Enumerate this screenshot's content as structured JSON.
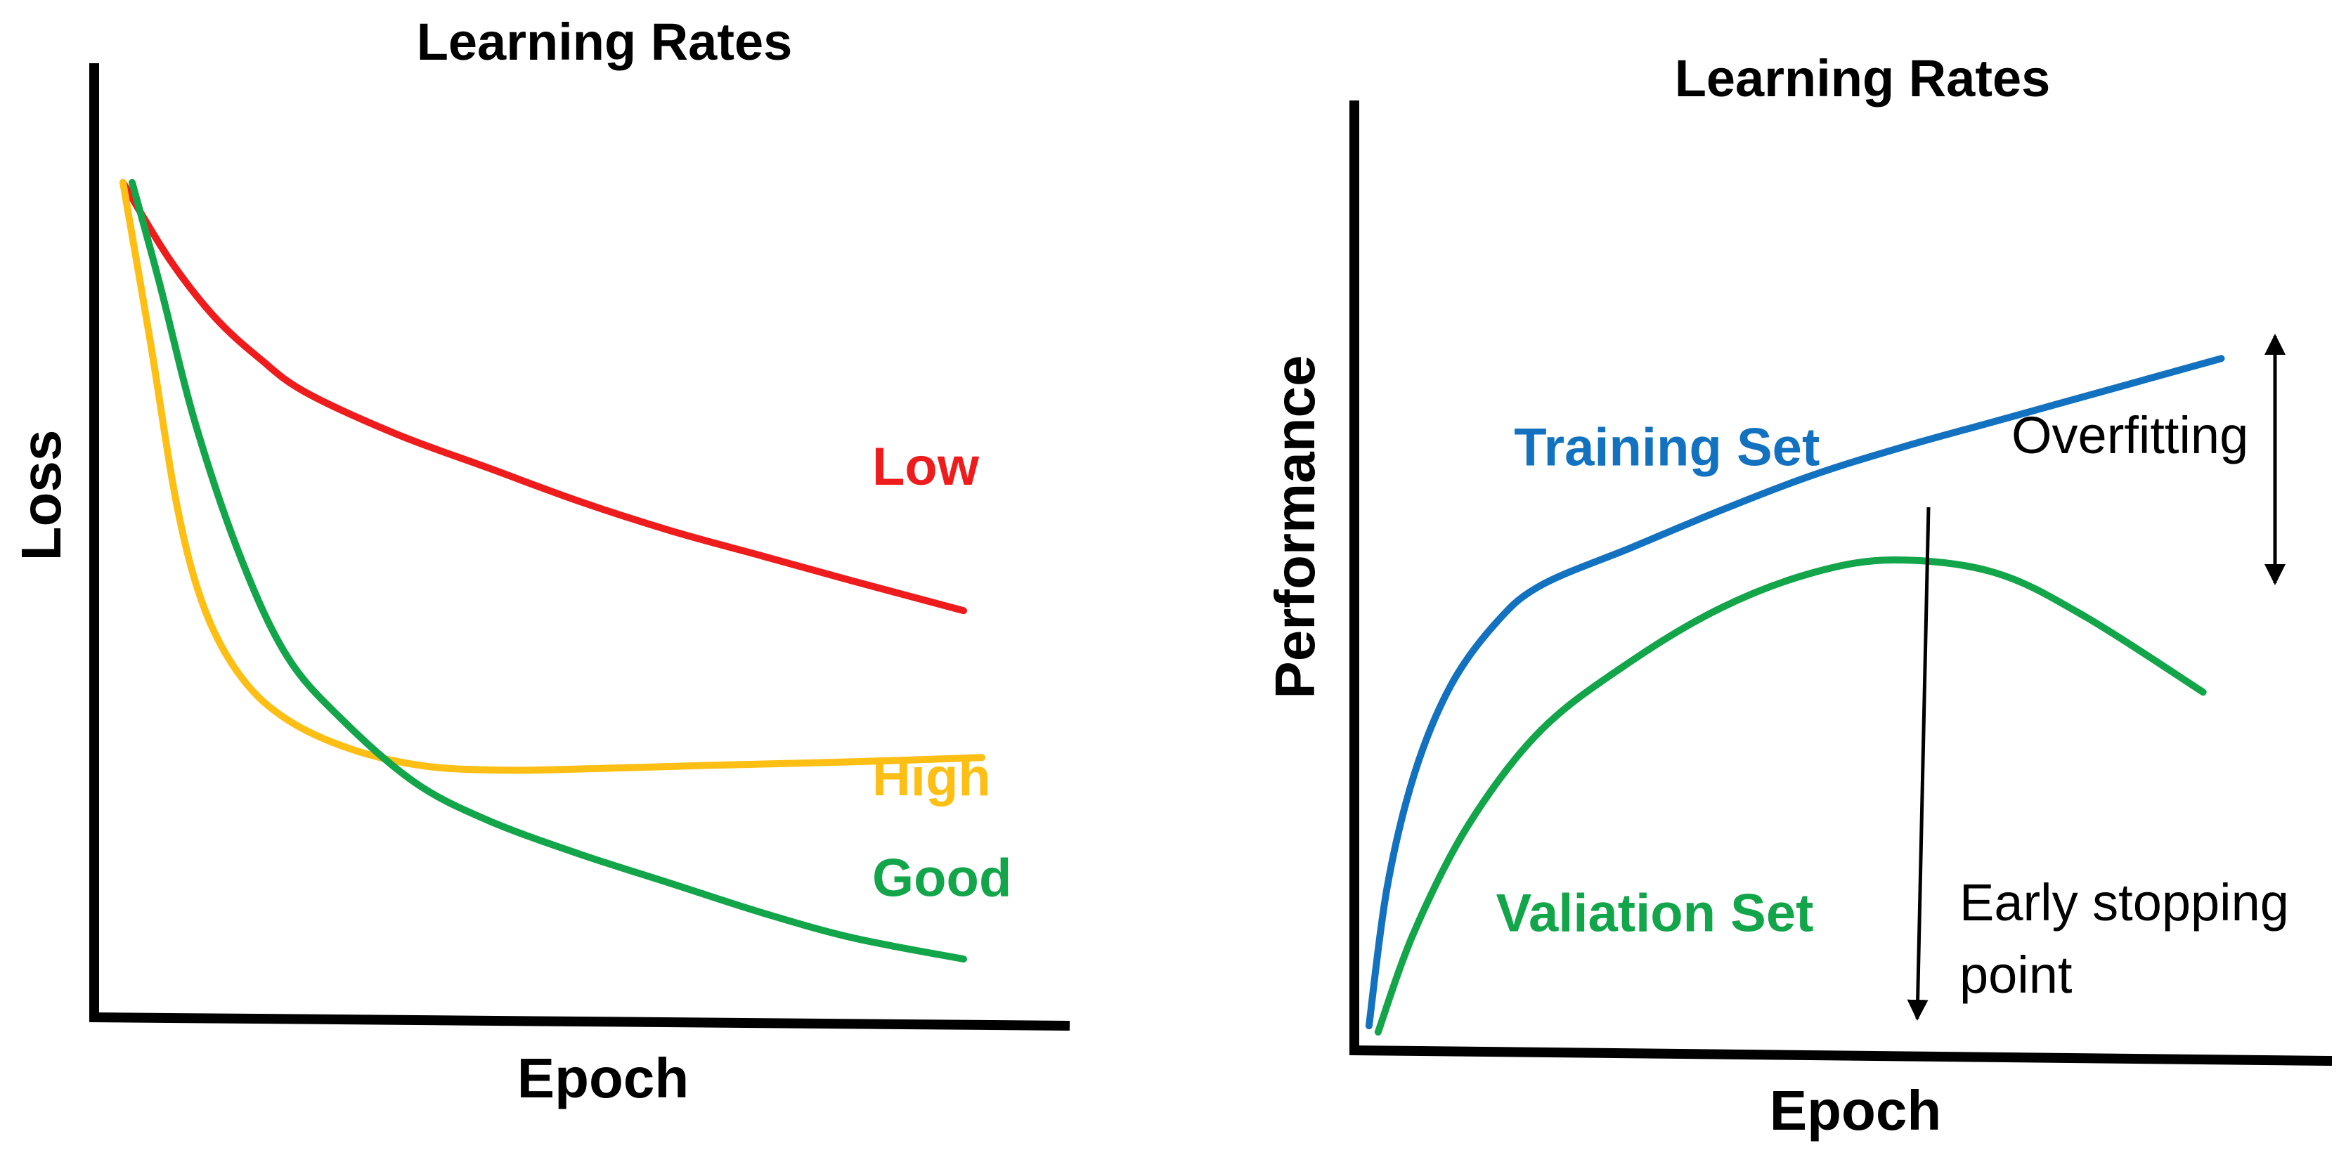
{
  "charts": [
    {
      "chart_data": {
        "type": "line",
        "title": "Learning Rates",
        "xlabel": "Epoch",
        "ylabel": "Loss",
        "grid": false,
        "xlim": [
          0,
          10
        ],
        "ylim": [
          0,
          10
        ],
        "series": [
          {
            "name": "Low",
            "color": "#ee1c1c",
            "x": [
              0,
              0.5,
              1.0,
              1.5,
              2.0,
              3.0,
              4.0,
              5.0,
              6.0,
              7.0,
              8.0,
              9.2
            ],
            "y": [
              9.5,
              8.6,
              7.9,
              7.4,
              7.0,
              6.5,
              6.1,
              5.7,
              5.35,
              5.05,
              4.75,
              4.4
            ]
          },
          {
            "name": "High",
            "color": "#fdbf14",
            "x": [
              0,
              0.3,
              0.6,
              0.9,
              1.3,
              1.8,
              2.5,
              3.3,
              4.2,
              5.2,
              6.5,
              8.0,
              9.4
            ],
            "y": [
              9.5,
              7.6,
              5.6,
              4.4,
              3.6,
              3.1,
              2.75,
              2.55,
              2.5,
              2.52,
              2.56,
              2.6,
              2.65
            ]
          },
          {
            "name": "Good",
            "color": "#13a54a",
            "x": [
              0.1,
              0.4,
              0.8,
              1.3,
              1.8,
              2.4,
              3.2,
              4.0,
              5.0,
              6.0,
              7.0,
              8.0,
              9.2
            ],
            "y": [
              9.5,
              8.3,
              6.6,
              5.0,
              3.85,
              3.1,
              2.35,
              1.9,
              1.5,
              1.15,
              0.8,
              0.5,
              0.25
            ]
          }
        ],
        "labels": [
          {
            "text": "Low",
            "color": "#ee1c1c",
            "x": 8.2,
            "y": 5.9
          },
          {
            "text": "High",
            "color": "#fdbf14",
            "x": 8.2,
            "y": 2.2
          },
          {
            "text": "Good",
            "color": "#13a54a",
            "x": 8.2,
            "y": 1.0
          }
        ]
      }
    },
    {
      "chart_data": {
        "type": "line",
        "title": "Learning Rates",
        "xlabel": "Epoch",
        "ylabel": "Performance",
        "grid": false,
        "xlim": [
          0,
          10
        ],
        "ylim": [
          0,
          10
        ],
        "series": [
          {
            "name": "Training Set",
            "color": "#1372c0",
            "x": [
              0.1,
              0.3,
              0.6,
              1.0,
              1.5,
              2.0,
              3.0,
              4.0,
              5.0,
              6.0,
              7.0,
              8.0,
              9.5
            ],
            "y": [
              0.2,
              2.4,
              4.2,
              5.6,
              6.6,
              7.2,
              7.8,
              8.4,
              8.95,
              9.4,
              9.8,
              10.2,
              10.8
            ]
          },
          {
            "name": "Valiation Set",
            "color": "#13a54a",
            "x": [
              0.2,
              0.6,
              1.2,
              2.0,
              3.0,
              4.0,
              5.0,
              5.9,
              7.0,
              8.0,
              9.3
            ],
            "y": [
              0.1,
              1.7,
              3.4,
              4.9,
              6.0,
              6.85,
              7.4,
              7.6,
              7.4,
              6.7,
              5.5
            ]
          }
        ],
        "labels": [
          {
            "text": "Training Set",
            "color": "#1372c0",
            "x": 1.7,
            "y": 9.1
          },
          {
            "text": "Valiation Set",
            "color": "#13a54a",
            "x": 1.5,
            "y": 1.7
          }
        ]
      },
      "annotations": {
        "overfitting": "Overfitting",
        "early_stopping_line1": "Early stopping",
        "early_stopping_line2": "point"
      }
    }
  ]
}
